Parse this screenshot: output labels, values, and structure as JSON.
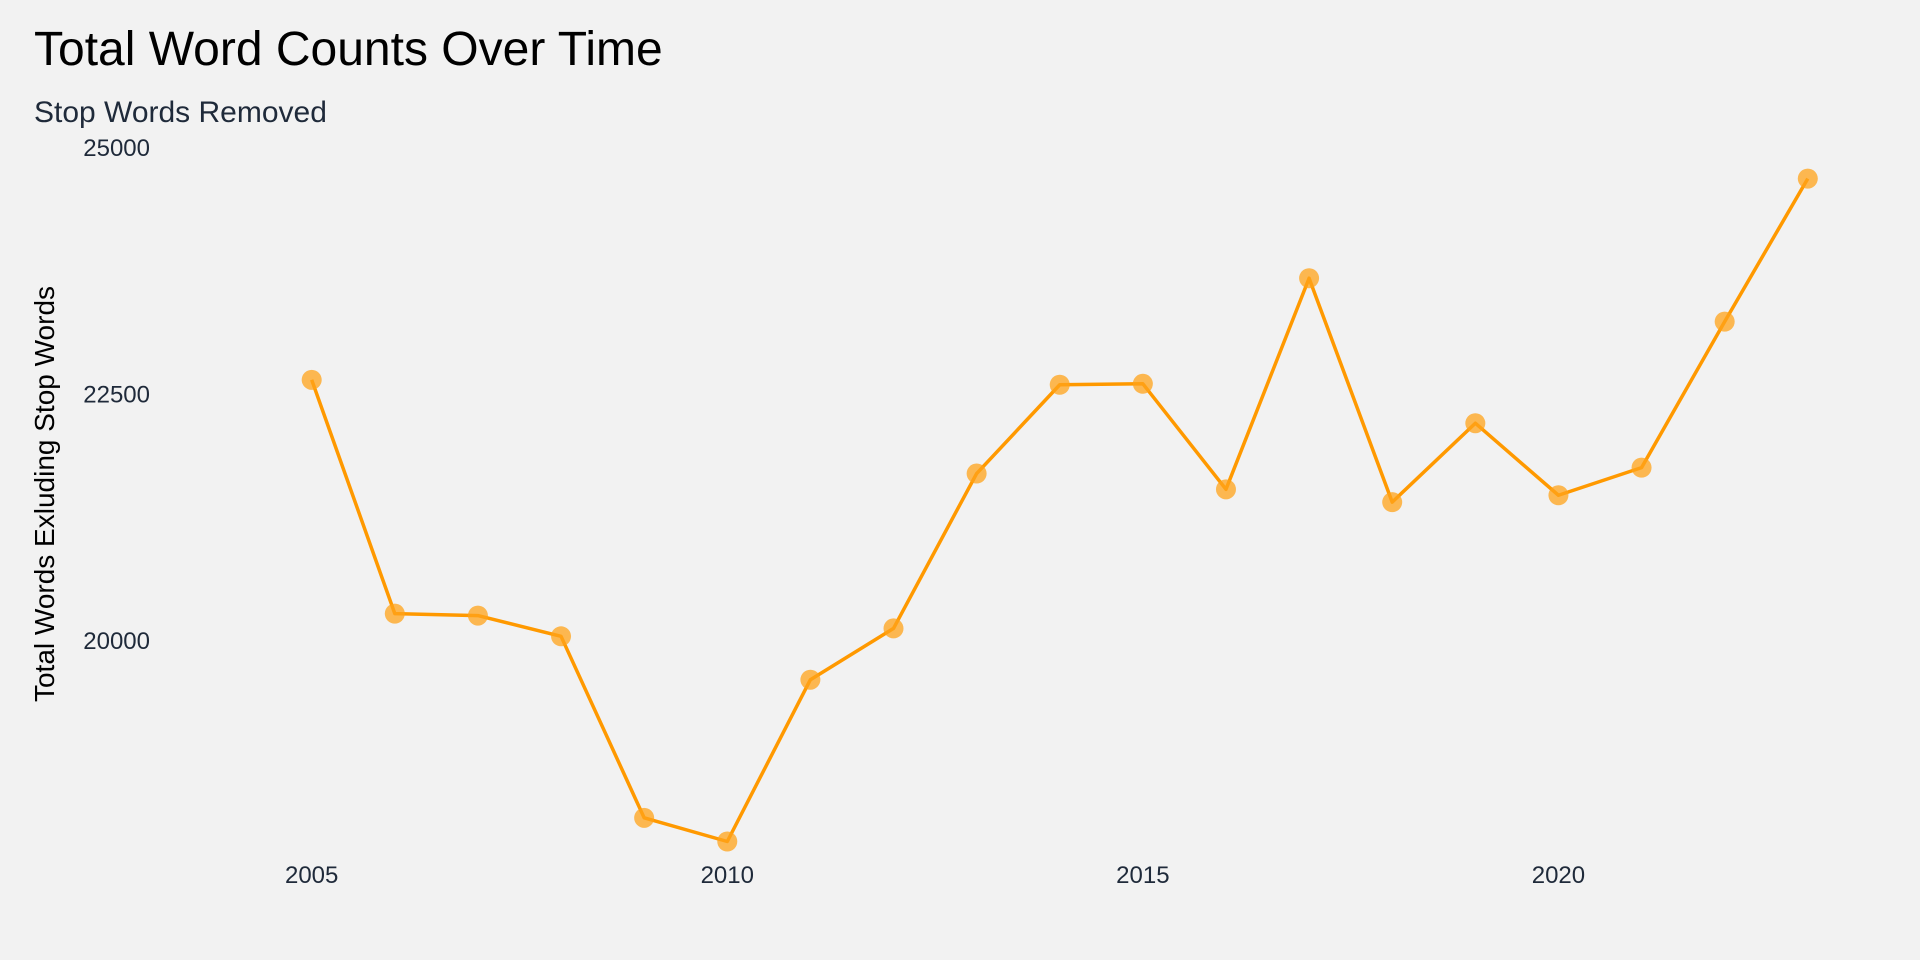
{
  "chart_data": {
    "type": "line",
    "title": "Total Word Counts Over Time",
    "subtitle": "Stop Words Removed",
    "xlabel": "",
    "ylabel": "Total Words Exluding Stop Words",
    "x": [
      2005,
      2006,
      2007,
      2008,
      2009,
      2010,
      2011,
      2012,
      2013,
      2014,
      2015,
      2016,
      2017,
      2018,
      2019,
      2020,
      2021,
      2022,
      2023
    ],
    "series": [
      {
        "name": "Total Words Exluding Stop Words",
        "values": [
          22650,
          20280,
          20260,
          20050,
          18210,
          17970,
          19610,
          20130,
          21700,
          22600,
          22610,
          21540,
          23680,
          21410,
          22210,
          21480,
          21760,
          23240,
          24690
        ]
      }
    ],
    "xlim": [
      2001.25,
      2024.35
    ],
    "ylim": [
      17600,
      25000
    ],
    "x_ticks": [
      2005,
      2010,
      2015,
      2020
    ],
    "y_ticks": [
      20000,
      22500,
      25000
    ],
    "grid": false,
    "colors": {
      "line": "#ff9900",
      "point": "#ffa31a",
      "background": "#f2f2f2"
    }
  }
}
